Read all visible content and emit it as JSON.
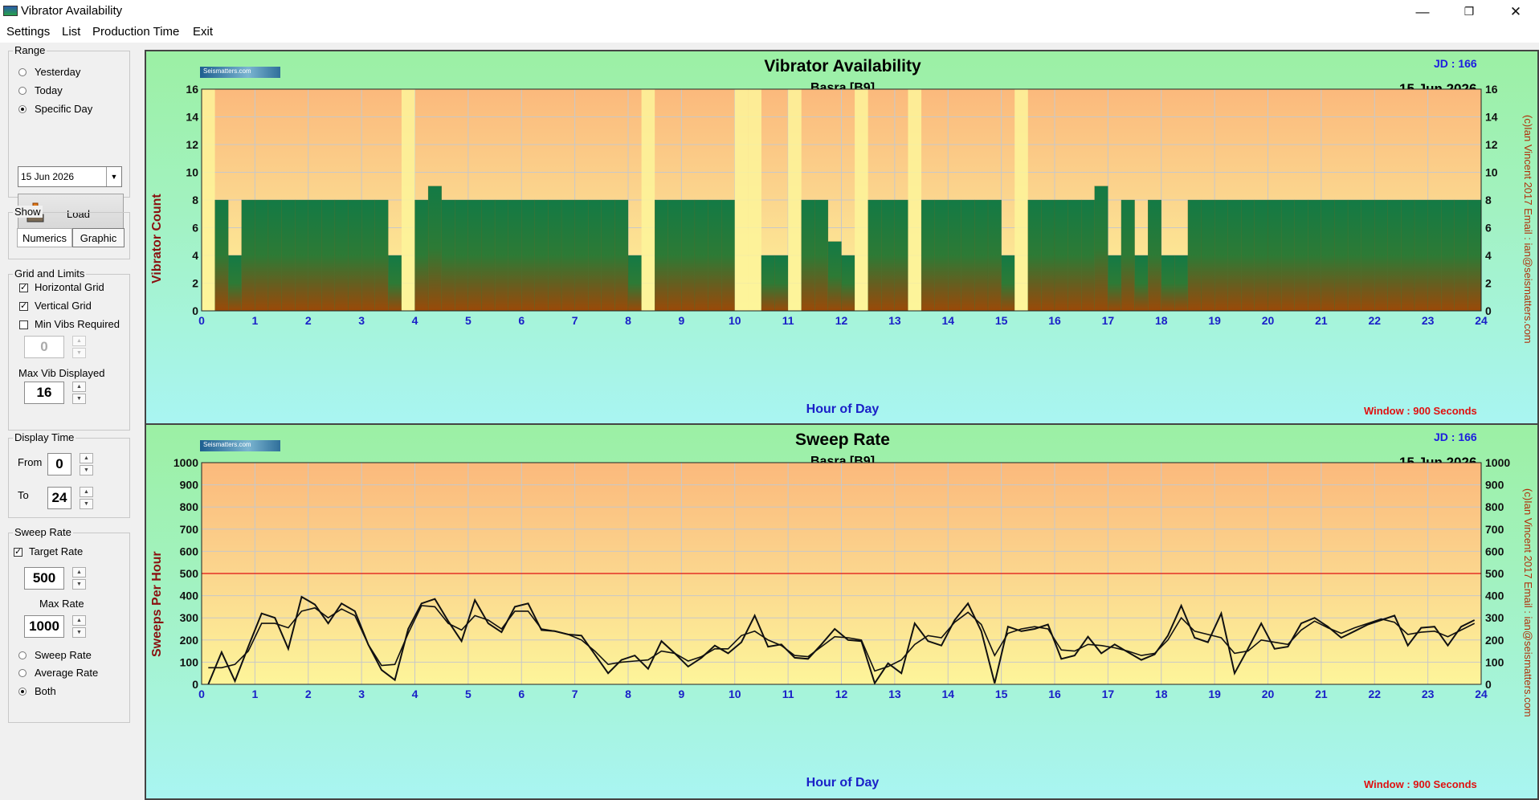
{
  "window": {
    "title": "Vibrator Availability",
    "minimize": "—",
    "restore": "❐",
    "close": "✕"
  },
  "menu": {
    "items": [
      "Settings",
      "List",
      "Production Time",
      "Exit"
    ]
  },
  "panel": {
    "range": {
      "label": "Range",
      "options": [
        "Yesterday",
        "Today",
        "Specific Day"
      ],
      "selected": "Specific Day",
      "date": "15 Jun 2026",
      "load_label": "Load"
    },
    "show": {
      "label": "Show",
      "numerics": "Numerics",
      "graphic": "Graphic",
      "selected": "Graphic"
    },
    "grid": {
      "label": "Grid and Limits",
      "horizontal": "Horizontal Grid",
      "vertical": "Vertical Grid",
      "min_vibs": "Min Vibs Required",
      "min_value": "0",
      "max_label": "Max Vib Displayed",
      "max_value": "16"
    },
    "display_time": {
      "label": "Display Time",
      "from_label": "From",
      "from_value": "0",
      "to_label": "To",
      "to_value": "24"
    },
    "sweep": {
      "label": "Sweep Rate",
      "target_label": "Target Rate",
      "target_value": "500",
      "max_label": "Max Rate",
      "max_value": "1000",
      "options": [
        "Sweep Rate",
        "Average Rate",
        "Both"
      ],
      "selected": "Both"
    }
  },
  "chart_common": {
    "jd": "JD : 166",
    "subtitle": "Basra  [B9]",
    "date": "15 Jun 2026",
    "xlabel": "Hour of Day",
    "window": "Window  : 900 Seconds",
    "copyright": "(c)Ian Vincent 2017  Email : ian@seismatters.com",
    "logo": "Seismatters.com"
  },
  "chart_data": [
    {
      "type": "bar",
      "title": "Vibrator Availability",
      "ylabel": "Vibrator Count",
      "xlabel": "Hour of Day",
      "xlim": [
        0,
        24
      ],
      "ylim": [
        0,
        16
      ],
      "x_ticks": [
        0,
        1,
        2,
        3,
        4,
        5,
        6,
        7,
        8,
        9,
        10,
        11,
        12,
        13,
        14,
        15,
        16,
        17,
        18,
        19,
        20,
        21,
        22,
        23,
        24
      ],
      "y_ticks": [
        0,
        2,
        4,
        6,
        8,
        10,
        12,
        14,
        16
      ],
      "bin_hours": 0.25,
      "values": [
        0,
        8,
        4,
        8,
        8,
        8,
        8,
        8,
        8,
        8,
        8,
        8,
        8,
        8,
        4,
        0,
        8,
        9,
        8,
        8,
        8,
        8,
        8,
        8,
        8,
        8,
        8,
        8,
        8,
        8,
        8,
        8,
        4,
        0,
        8,
        8,
        8,
        8,
        8,
        8,
        0,
        0,
        4,
        4,
        0,
        8,
        8,
        5,
        4,
        0,
        8,
        8,
        8,
        0,
        8,
        8,
        8,
        8,
        8,
        8,
        4,
        0,
        8,
        8,
        8,
        8,
        8,
        9,
        4,
        8,
        4,
        8,
        4,
        4,
        8,
        8,
        8,
        8,
        8,
        8,
        8,
        8,
        8,
        8,
        8,
        8,
        8,
        8,
        8,
        8,
        8,
        8,
        8,
        8,
        8,
        8
      ],
      "grid": true
    },
    {
      "type": "line",
      "title": "Sweep Rate",
      "ylabel": "Sweeps Per Hour",
      "xlabel": "Hour of Day",
      "xlim": [
        0,
        24
      ],
      "ylim": [
        0,
        1000
      ],
      "x_ticks": [
        0,
        1,
        2,
        3,
        4,
        5,
        6,
        7,
        8,
        9,
        10,
        11,
        12,
        13,
        14,
        15,
        16,
        17,
        18,
        19,
        20,
        21,
        22,
        23,
        24
      ],
      "y_ticks": [
        0,
        100,
        200,
        300,
        400,
        500,
        600,
        700,
        800,
        900,
        1000
      ],
      "target": 500,
      "grid": true,
      "series": [
        {
          "name": "Sweep Rate",
          "x": [
            0.125,
            0.375,
            0.625,
            0.875,
            1.125,
            1.375,
            1.625,
            1.875,
            2.125,
            2.375,
            2.625,
            2.875,
            3.125,
            3.375,
            3.625,
            3.875,
            4.125,
            4.375,
            4.625,
            4.875,
            5.125,
            5.375,
            5.625,
            5.875,
            6.125,
            6.375,
            6.625,
            6.875,
            7.125,
            7.375,
            7.625,
            7.875,
            8.125,
            8.375,
            8.625,
            8.875,
            9.125,
            9.375,
            9.625,
            9.875,
            10.125,
            10.375,
            10.625,
            10.875,
            11.125,
            11.375,
            11.625,
            11.875,
            12.125,
            12.375,
            12.625,
            12.875,
            13.125,
            13.375,
            13.625,
            13.875,
            14.125,
            14.375,
            14.625,
            14.875,
            15.125,
            15.375,
            15.625,
            15.875,
            16.125,
            16.375,
            16.625,
            16.875,
            17.125,
            17.375,
            17.625,
            17.875,
            18.125,
            18.375,
            18.625,
            18.875,
            19.125,
            19.375,
            19.625,
            19.875,
            20.125,
            20.375,
            20.625,
            20.875,
            21.125,
            21.375,
            21.625,
            21.875,
            22.125,
            22.375,
            22.625,
            22.875,
            23.125,
            23.375,
            23.625,
            23.875
          ],
          "y": [
            0,
            145,
            15,
            170,
            320,
            300,
            160,
            395,
            360,
            275,
            365,
            330,
            180,
            65,
            20,
            250,
            365,
            385,
            285,
            195,
            380,
            275,
            235,
            350,
            365,
            245,
            240,
            225,
            220,
            135,
            50,
            110,
            130,
            70,
            195,
            140,
            80,
            120,
            175,
            140,
            190,
            310,
            170,
            180,
            120,
            115,
            180,
            250,
            200,
            195,
            5,
            95,
            50,
            275,
            195,
            175,
            290,
            365,
            240,
            5,
            260,
            240,
            250,
            270,
            115,
            130,
            215,
            140,
            180,
            145,
            110,
            135,
            220,
            355,
            210,
            190,
            320,
            50,
            160,
            275,
            160,
            170,
            275,
            300,
            260,
            210,
            240,
            270,
            290,
            310,
            175,
            255,
            260,
            175,
            260,
            290
          ]
        },
        {
          "name": "Average Rate",
          "x": [
            0.125,
            0.375,
            0.625,
            0.875,
            1.125,
            1.375,
            1.625,
            1.875,
            2.125,
            2.375,
            2.625,
            2.875,
            3.125,
            3.375,
            3.625,
            3.875,
            4.125,
            4.375,
            4.625,
            4.875,
            5.125,
            5.375,
            5.625,
            5.875,
            6.125,
            6.375,
            6.625,
            6.875,
            7.125,
            7.375,
            7.625,
            7.875,
            8.125,
            8.375,
            8.625,
            8.875,
            9.125,
            9.375,
            9.625,
            9.875,
            10.125,
            10.375,
            10.625,
            10.875,
            11.125,
            11.375,
            11.625,
            11.875,
            12.125,
            12.375,
            12.625,
            12.875,
            13.125,
            13.375,
            13.625,
            13.875,
            14.125,
            14.375,
            14.625,
            14.875,
            15.125,
            15.375,
            15.625,
            15.875,
            16.125,
            16.375,
            16.625,
            16.875,
            17.125,
            17.375,
            17.625,
            17.875,
            18.125,
            18.375,
            18.625,
            18.875,
            19.125,
            19.375,
            19.625,
            19.875,
            20.125,
            20.375,
            20.625,
            20.875,
            21.125,
            21.375,
            21.625,
            21.875,
            22.125,
            22.375,
            22.625,
            22.875,
            23.125,
            23.375,
            23.625,
            23.875
          ],
          "y": [
            75,
            75,
            90,
            150,
            275,
            275,
            255,
            330,
            345,
            300,
            340,
            310,
            180,
            85,
            90,
            230,
            355,
            350,
            275,
            245,
            310,
            290,
            250,
            330,
            330,
            250,
            240,
            225,
            200,
            150,
            90,
            100,
            105,
            110,
            150,
            140,
            105,
            125,
            160,
            160,
            220,
            240,
            200,
            175,
            130,
            125,
            170,
            215,
            210,
            200,
            60,
            80,
            110,
            180,
            220,
            210,
            280,
            325,
            270,
            130,
            230,
            250,
            260,
            250,
            155,
            150,
            180,
            175,
            165,
            150,
            130,
            140,
            200,
            300,
            240,
            225,
            210,
            140,
            150,
            200,
            190,
            180,
            245,
            285,
            255,
            230,
            255,
            275,
            295,
            280,
            225,
            235,
            240,
            215,
            245,
            275
          ]
        }
      ]
    }
  ]
}
